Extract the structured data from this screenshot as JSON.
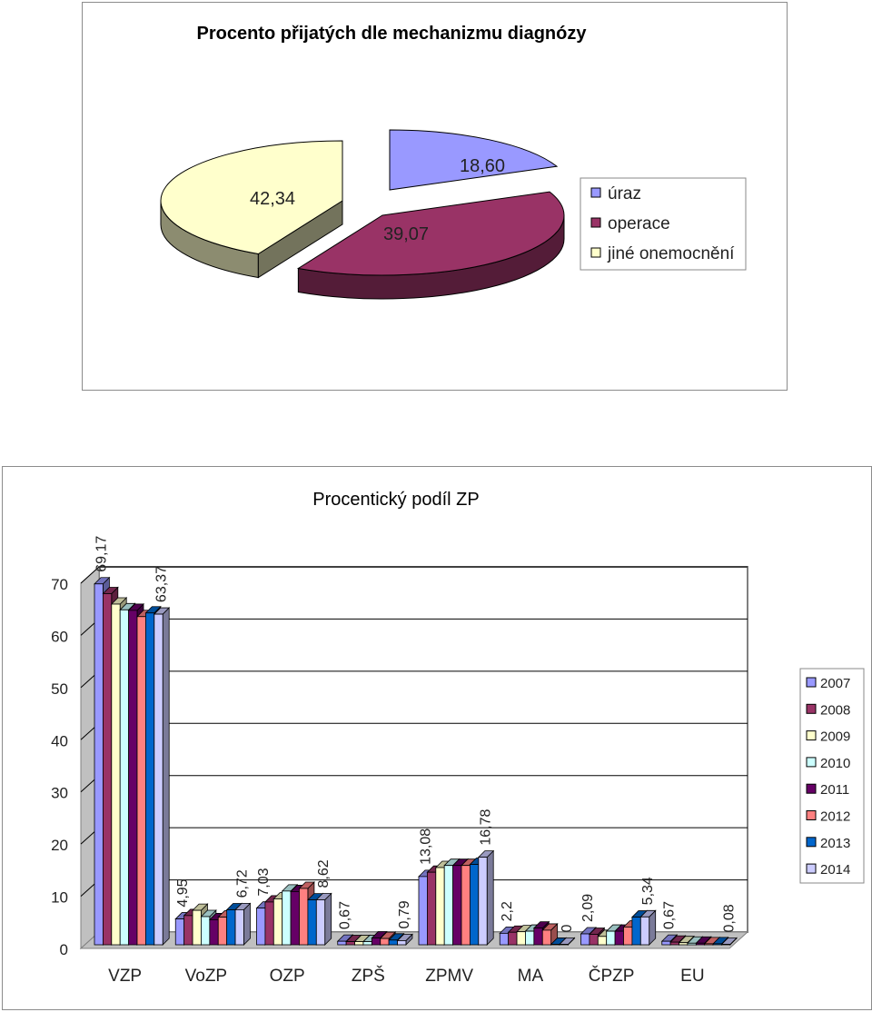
{
  "chart_data": [
    {
      "type": "pie",
      "title": "Procento přijatých dle mechanizmu diagnózy",
      "legend_position": "right",
      "slices": [
        {
          "name": "úraz",
          "value": 18.6,
          "label": "18,60",
          "color": "#9999ff"
        },
        {
          "name": "operace",
          "value": 39.07,
          "label": "39,07",
          "color": "#993366"
        },
        {
          "name": "jiné onemocnění",
          "value": 42.34,
          "label": "42,34",
          "color": "#ffffcc"
        }
      ]
    },
    {
      "type": "bar",
      "title": "Procentický podíl ZP",
      "ylim": [
        0,
        70
      ],
      "yticks": [
        "0",
        "10",
        "20",
        "30",
        "40",
        "50",
        "60",
        "70"
      ],
      "grid": true,
      "legend_position": "right",
      "categories": [
        "VZP",
        "VoZP",
        "OZP",
        "ZPŠ",
        "ZPMV",
        "MA",
        "ČPZP",
        "EU"
      ],
      "series": [
        {
          "name": "2007",
          "color": "#9999ff",
          "values": [
            69.17,
            4.95,
            7.03,
            0.67,
            13.08,
            2.2,
            2.09,
            0.67
          ]
        },
        {
          "name": "2008",
          "color": "#993366",
          "values": [
            67.3,
            5.6,
            8.2,
            0.6,
            13.9,
            2.4,
            2.0,
            0.5
          ]
        },
        {
          "name": "2009",
          "color": "#ffffcc",
          "values": [
            65.3,
            6.6,
            8.8,
            0.6,
            14.8,
            2.5,
            1.6,
            0.4
          ]
        },
        {
          "name": "2010",
          "color": "#ccffff",
          "values": [
            64.2,
            5.4,
            10.3,
            0.6,
            15.2,
            2.6,
            2.6,
            0.3
          ]
        },
        {
          "name": "2011",
          "color": "#660066",
          "values": [
            64.1,
            4.8,
            10.2,
            1.3,
            15.2,
            3.2,
            2.6,
            0.3
          ]
        },
        {
          "name": "2012",
          "color": "#ff8080",
          "values": [
            62.9,
            5.3,
            10.8,
            1.2,
            15.2,
            2.8,
            3.4,
            0.2
          ]
        },
        {
          "name": "2013",
          "color": "#0066cc",
          "values": [
            63.6,
            6.7,
            8.6,
            0.9,
            15.4,
            0.1,
            5.3,
            0.2
          ]
        },
        {
          "name": "2014",
          "color": "#ccccff",
          "values": [
            63.37,
            6.72,
            8.62,
            0.79,
            16.78,
            0,
            5.34,
            0.08
          ]
        }
      ],
      "data_labels": [
        {
          "series": 0,
          "category": 0,
          "text": "69,17"
        },
        {
          "series": 7,
          "category": 0,
          "text": "63,37"
        },
        {
          "series": 0,
          "category": 1,
          "text": "4,95"
        },
        {
          "series": 7,
          "category": 1,
          "text": "6,72"
        },
        {
          "series": 0,
          "category": 2,
          "text": "7,03"
        },
        {
          "series": 7,
          "category": 2,
          "text": "8,62"
        },
        {
          "series": 0,
          "category": 3,
          "text": "0,67"
        },
        {
          "series": 7,
          "category": 3,
          "text": "0,79"
        },
        {
          "series": 0,
          "category": 4,
          "text": "13,08"
        },
        {
          "series": 7,
          "category": 4,
          "text": "16,78"
        },
        {
          "series": 0,
          "category": 5,
          "text": "2,2"
        },
        {
          "series": 7,
          "category": 5,
          "text": "0"
        },
        {
          "series": 0,
          "category": 6,
          "text": "2,09"
        },
        {
          "series": 7,
          "category": 6,
          "text": "5,34"
        },
        {
          "series": 0,
          "category": 7,
          "text": "0,67"
        },
        {
          "series": 7,
          "category": 7,
          "text": "0,08"
        }
      ]
    }
  ]
}
